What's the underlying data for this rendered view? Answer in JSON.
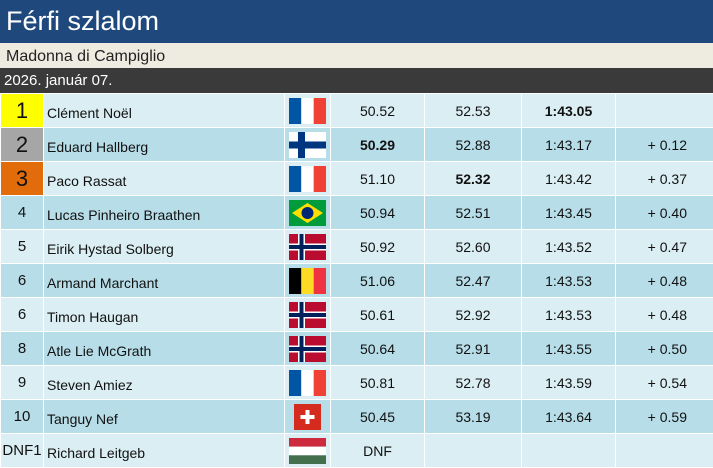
{
  "title": "Férfi szlalom",
  "venue": "Madonna di Campiglio",
  "date": "2026. január 07.",
  "colors": {
    "title_bar": "#1f497d",
    "gold": "#ffff00",
    "silver": "#a6a6a6",
    "bronze": "#e26b0a",
    "row_light": "#daeef3",
    "row_dark": "#b7dde8"
  },
  "results": [
    {
      "pos": "1",
      "medal": "gold",
      "name": "Clément Noël",
      "flag": "flag-france-icon",
      "run1": "50.52",
      "run2": "52.53",
      "total": "1:43.05",
      "gap": "",
      "bold": [
        "total"
      ]
    },
    {
      "pos": "2",
      "medal": "silver",
      "name": "Eduard Hallberg",
      "flag": "flag-finland-icon",
      "run1": "50.29",
      "run2": "52.88",
      "total": "1:43.17",
      "gap": "+ 0.12",
      "bold": [
        "run1"
      ]
    },
    {
      "pos": "3",
      "medal": "bronze",
      "name": "Paco Rassat",
      "flag": "flag-france-icon",
      "run1": "51.10",
      "run2": "52.32",
      "total": "1:43.42",
      "gap": "+ 0.37",
      "bold": [
        "run2"
      ]
    },
    {
      "pos": "4",
      "medal": "",
      "name": "Lucas Pinheiro Braathen",
      "flag": "flag-brazil-icon",
      "run1": "50.94",
      "run2": "52.51",
      "total": "1:43.45",
      "gap": "+ 0.40",
      "bold": []
    },
    {
      "pos": "5",
      "medal": "",
      "name": "Eirik Hystad Solberg",
      "flag": "flag-norway-icon",
      "run1": "50.92",
      "run2": "52.60",
      "total": "1:43.52",
      "gap": "+ 0.47",
      "bold": []
    },
    {
      "pos": "6",
      "medal": "",
      "name": "Armand Marchant",
      "flag": "flag-belgium-icon",
      "run1": "51.06",
      "run2": "52.47",
      "total": "1:43.53",
      "gap": "+ 0.48",
      "bold": []
    },
    {
      "pos": "6",
      "medal": "",
      "name": "Timon Haugan",
      "flag": "flag-norway-icon",
      "run1": "50.61",
      "run2": "52.92",
      "total": "1:43.53",
      "gap": "+ 0.48",
      "bold": []
    },
    {
      "pos": "8",
      "medal": "",
      "name": "Atle Lie McGrath",
      "flag": "flag-norway-icon",
      "run1": "50.64",
      "run2": "52.91",
      "total": "1:43.55",
      "gap": "+ 0.50",
      "bold": []
    },
    {
      "pos": "9",
      "medal": "",
      "name": "Steven Amiez",
      "flag": "flag-france-icon",
      "run1": "50.81",
      "run2": "52.78",
      "total": "1:43.59",
      "gap": "+ 0.54",
      "bold": []
    },
    {
      "pos": "10",
      "medal": "",
      "name": "Tanguy Nef",
      "flag": "flag-switzerland-icon",
      "run1": "50.45",
      "run2": "53.19",
      "total": "1:43.64",
      "gap": "+ 0.59",
      "bold": []
    },
    {
      "pos": "DNF1",
      "medal": "",
      "name": "Richard Leitgeb",
      "flag": "flag-hungary-icon",
      "run1": "DNF",
      "run2": "",
      "total": "",
      "gap": "",
      "bold": []
    }
  ]
}
